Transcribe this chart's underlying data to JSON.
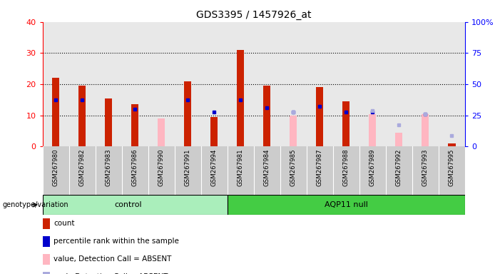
{
  "title": "GDS3395 / 1457926_at",
  "samples": [
    "GSM267980",
    "GSM267982",
    "GSM267983",
    "GSM267986",
    "GSM267990",
    "GSM267991",
    "GSM267994",
    "GSM267981",
    "GSM267984",
    "GSM267985",
    "GSM267987",
    "GSM267988",
    "GSM267989",
    "GSM267992",
    "GSM267993",
    "GSM267995"
  ],
  "n_control": 7,
  "n_aqp11": 9,
  "red_bars": [
    22,
    19.5,
    15.5,
    13.5,
    0,
    21,
    9.5,
    31,
    19.5,
    0,
    19,
    14.5,
    0,
    0,
    0,
    1
  ],
  "blue_dots": [
    15,
    15,
    0,
    12,
    0,
    15,
    11,
    15,
    12.5,
    11,
    13,
    11,
    11,
    0,
    10.5,
    0
  ],
  "pink_bars": [
    0,
    0,
    0,
    0,
    9,
    0,
    0,
    0,
    0,
    10,
    0,
    0,
    10.5,
    4.5,
    10.5,
    1
  ],
  "lightblue_dots": [
    0,
    0,
    0,
    0,
    0,
    0,
    0,
    0,
    0,
    11,
    0,
    0,
    11.5,
    7,
    10.5,
    3.5
  ],
  "ylim_left": [
    0,
    40
  ],
  "ylim_right": [
    0,
    100
  ],
  "yticks_left": [
    0,
    10,
    20,
    30,
    40
  ],
  "yticks_right": [
    0,
    25,
    50,
    75,
    100
  ],
  "ytick_labels_right": [
    "0",
    "25",
    "50",
    "75",
    "100%"
  ],
  "bar_color_red": "#CC2200",
  "bar_color_pink": "#FFB6C1",
  "dot_color_blue": "#0000CC",
  "dot_color_lightblue": "#AAAADD",
  "bg_color_plot": "#E8E8E8",
  "bg_color_xlabels": "#CCCCCC",
  "color_control": "#AAEEBB",
  "color_aqp11": "#44CC44",
  "legend_items": [
    {
      "label": "count",
      "color": "#CC2200"
    },
    {
      "label": "percentile rank within the sample",
      "color": "#0000CC"
    },
    {
      "label": "value, Detection Call = ABSENT",
      "color": "#FFB6C1"
    },
    {
      "label": "rank, Detection Call = ABSENT",
      "color": "#AAAADD"
    }
  ]
}
